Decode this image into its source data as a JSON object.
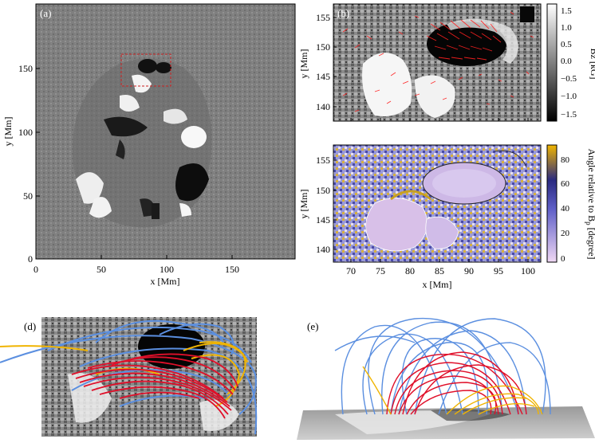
{
  "panels": {
    "a": {
      "label": "(a)",
      "xlabel": "x [Mm]",
      "ylabel": "y [Mm]",
      "xticks": [
        "0",
        "50",
        "100",
        "150"
      ],
      "yticks": [
        "0",
        "50",
        "100",
        "150"
      ]
    },
    "b": {
      "label": "(b)",
      "xlabel": "",
      "ylabel": "y [Mm]",
      "yticks": [
        "140",
        "145",
        "150",
        "155"
      ],
      "cbar_label": "Bz [kG]",
      "cbar_ticks": [
        "1.5",
        "1.0",
        "0.5",
        "0.0",
        "−0.5",
        "−1.0",
        "−1.5"
      ]
    },
    "c": {
      "label": "",
      "xlabel": "x [Mm]",
      "ylabel": "y [Mm]",
      "xticks": [
        "70",
        "75",
        "80",
        "85",
        "90",
        "95",
        "100"
      ],
      "yticks": [
        "140",
        "145",
        "150",
        "155"
      ],
      "cbar_label": "Angle relative to B",
      "cbar_label_sub": "p",
      "cbar_label_end": " [degree]",
      "cbar_ticks": [
        "80",
        "60",
        "40",
        "20",
        "0"
      ]
    },
    "d": {
      "label": "(d)"
    },
    "e": {
      "label": "(e)"
    }
  },
  "colors": {
    "field_line_red": "#e0102a",
    "field_line_blue": "#5b8fe0",
    "field_line_yellow": "#f0b400",
    "vector_red": "#ff2020"
  }
}
